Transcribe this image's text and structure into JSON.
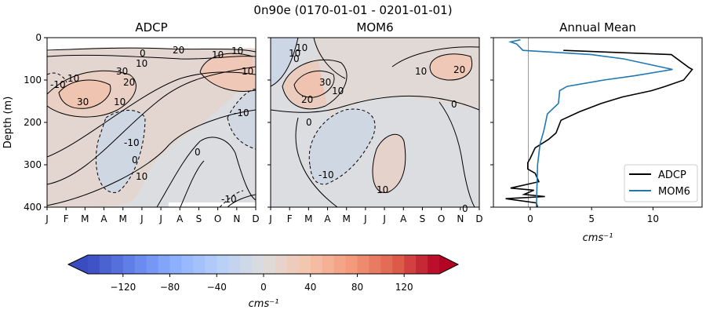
{
  "figure": {
    "suptitle": "0n90e (0170-01-01 - 0201-01-01)"
  },
  "chart_data": [
    {
      "type": "heatmap",
      "title": "ADCP",
      "ylabel": "Depth (m)",
      "x_ticks": [
        "J",
        "F",
        "M",
        "A",
        "M",
        "J",
        "J",
        "A",
        "S",
        "O",
        "N",
        "D"
      ],
      "y_ticks": [
        0,
        100,
        200,
        300,
        400
      ],
      "ylim": [
        400,
        0
      ],
      "contour_labels": [
        "10",
        "0",
        "20",
        "10",
        "10",
        "10",
        "10",
        "30",
        "20",
        "30",
        "-10",
        "10",
        "-10",
        "0",
        "10",
        "0",
        "-10",
        "-10"
      ]
    },
    {
      "type": "heatmap",
      "title": "MOM6",
      "x_ticks": [
        "J",
        "F",
        "M",
        "A",
        "M",
        "J",
        "J",
        "A",
        "S",
        "O",
        "N",
        "D"
      ],
      "ylim": [
        400,
        0
      ],
      "contour_labels": [
        "10",
        "0",
        "10",
        "30",
        "20",
        "10",
        "10",
        "20",
        "0",
        "0",
        "-10",
        "10",
        "0"
      ]
    },
    {
      "type": "line",
      "title": "Annual Mean",
      "xlabel": "cms⁻¹",
      "x_ticks": [
        0,
        5,
        10
      ],
      "xlim": [
        -3,
        14
      ],
      "ylim": [
        400,
        0
      ],
      "legend_position": "lower-right",
      "series": [
        {
          "name": "ADCP",
          "color": "#000000",
          "points": [
            [
              2.7,
              30
            ],
            [
              11.5,
              40
            ],
            [
              12.9,
              70
            ],
            [
              13.2,
              75
            ],
            [
              12.5,
              100
            ],
            [
              11,
              115
            ],
            [
              9.9,
              125
            ],
            [
              7.5,
              140
            ],
            [
              5.8,
              155
            ],
            [
              4,
              175
            ],
            [
              2.5,
              195
            ],
            [
              2.1,
              225
            ],
            [
              1.5,
              240
            ],
            [
              0.4,
              260
            ],
            [
              0,
              285
            ],
            [
              -0.2,
              295
            ],
            [
              -0.2,
              310
            ],
            [
              0.4,
              320
            ],
            [
              0.7,
              340
            ],
            [
              -1.6,
              355
            ],
            [
              0.3,
              360
            ],
            [
              -0.5,
              370
            ],
            [
              1.2,
              375
            ],
            [
              -2,
              380
            ],
            [
              0.5,
              390
            ],
            [
              0.6,
              400
            ]
          ]
        },
        {
          "name": "MOM6",
          "color": "#1f77b4",
          "points": [
            [
              -0.8,
              5
            ],
            [
              -1.6,
              10
            ],
            [
              -1.1,
              15
            ],
            [
              -0.6,
              30
            ],
            [
              5,
              40
            ],
            [
              7.6,
              50
            ],
            [
              11.6,
              75
            ],
            [
              8.5,
              90
            ],
            [
              6,
              100
            ],
            [
              3,
              115
            ],
            [
              2.4,
              125
            ],
            [
              2.3,
              155
            ],
            [
              1.4,
              180
            ],
            [
              1.1,
              220
            ],
            [
              0.8,
              250
            ],
            [
              0.6,
              300
            ],
            [
              0.5,
              400
            ]
          ]
        }
      ]
    },
    {
      "type": "colorbar",
      "xlabel": "cms⁻¹",
      "ticks": [
        -120,
        -80,
        -40,
        0,
        40,
        80,
        120
      ],
      "range": [
        -150,
        150
      ],
      "levels": 30
    }
  ]
}
